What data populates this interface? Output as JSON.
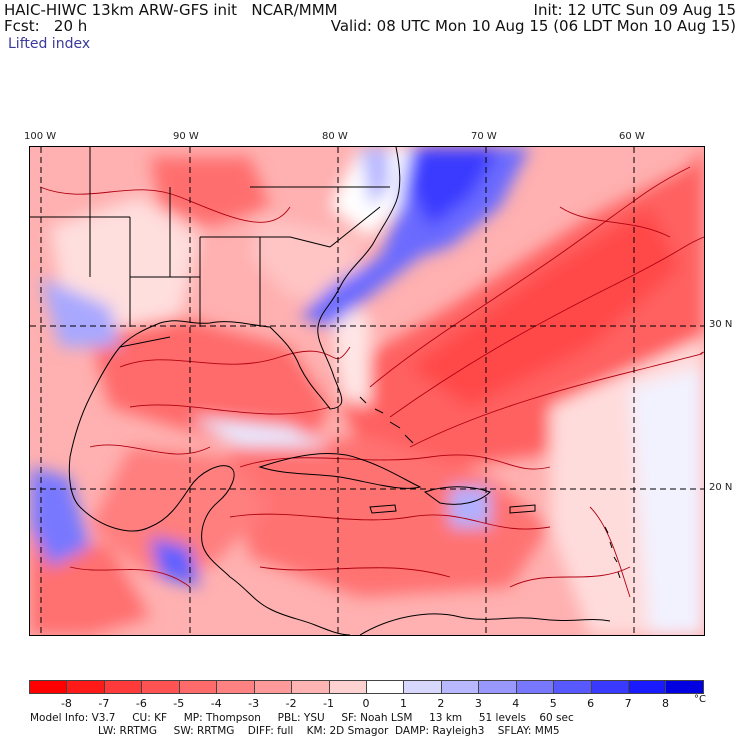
{
  "header": {
    "model": "HAIC-HIWC 13km ARW-GFS init",
    "org": "NCAR/MMM",
    "fcst": "Fcst:   20 h",
    "init": "Init: 12 UTC Sun 09 Aug 15",
    "valid": "Valid: 08 UTC Mon 10 Aug 15 (06 LDT Mon 10 Aug 15)",
    "field": "Lifted index"
  },
  "map": {
    "lon_labels": [
      "100 W",
      "90 W",
      "80 W",
      "70 W",
      "60 W"
    ],
    "lat_labels": [
      "30 N",
      "20 N"
    ],
    "projection": "lat-lon",
    "grid_lines": "dashed"
  },
  "colorbar": {
    "labels": [
      "-8",
      "-7",
      "-6",
      "-5",
      "-4",
      "-3",
      "-2",
      "-1",
      "0",
      "1",
      "2",
      "3",
      "4",
      "5",
      "6",
      "7",
      "8"
    ],
    "unit": "°C",
    "colors": [
      "#ff0000",
      "#ff1a1a",
      "#ff3a3a",
      "#ff5252",
      "#ff6a6a",
      "#ff8282",
      "#ff9a9a",
      "#ffb4b4",
      "#ffd2d2",
      "#ffffff",
      "#d8d8ff",
      "#b8b8ff",
      "#9898ff",
      "#7878ff",
      "#5858ff",
      "#3a3aff",
      "#1a1aff",
      "#0000e0"
    ]
  },
  "info": {
    "line1": [
      "Model Info: V3.7",
      "CU: KF",
      "MP: Thompson",
      "PBL: YSU",
      "SF: Noah LSM",
      "13 km",
      "51 levels",
      "60 sec"
    ],
    "line2": [
      "LW: RRTMG",
      "SW: RRTMG",
      "DIFF: full",
      "KM: 2D Smagor",
      "DAMP: Rayleigh3",
      "SFLAY: MM5"
    ]
  }
}
